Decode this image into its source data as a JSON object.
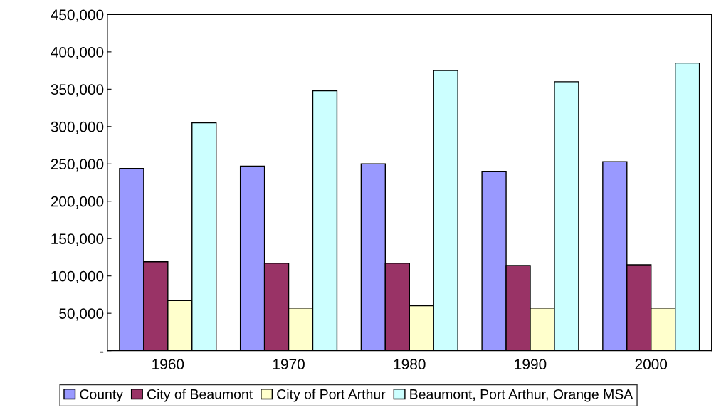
{
  "chart_data": {
    "type": "bar",
    "categories": [
      "1960",
      "1970",
      "1980",
      "1990",
      "2000"
    ],
    "series": [
      {
        "name": "County",
        "color": "#9999ff",
        "values": [
          244000,
          247000,
          250000,
          240000,
          253000
        ]
      },
      {
        "name": "City of Beaumont",
        "color": "#993366",
        "values": [
          119000,
          117000,
          117000,
          114000,
          115000
        ]
      },
      {
        "name": "City of Port Arthur",
        "color": "#ffffcc",
        "values": [
          67000,
          57000,
          60000,
          57000,
          57000
        ]
      },
      {
        "name": "Beaumont, Port Arthur, Orange MSA",
        "color": "#ccffff",
        "values": [
          305000,
          348000,
          375000,
          360000,
          385000
        ]
      }
    ],
    "ylim": [
      0,
      450000
    ],
    "yticks": [
      {
        "value": 0,
        "label": "-"
      },
      {
        "value": 50000,
        "label": "50,000"
      },
      {
        "value": 100000,
        "label": "100,000"
      },
      {
        "value": 150000,
        "label": "150,000"
      },
      {
        "value": 200000,
        "label": "200,000"
      },
      {
        "value": 250000,
        "label": "250,000"
      },
      {
        "value": 300000,
        "label": "300,000"
      },
      {
        "value": 350000,
        "label": "350,000"
      },
      {
        "value": 400000,
        "label": "400,000"
      },
      {
        "value": 450000,
        "label": "450,000"
      }
    ],
    "grid": false,
    "legend": "bottom"
  }
}
